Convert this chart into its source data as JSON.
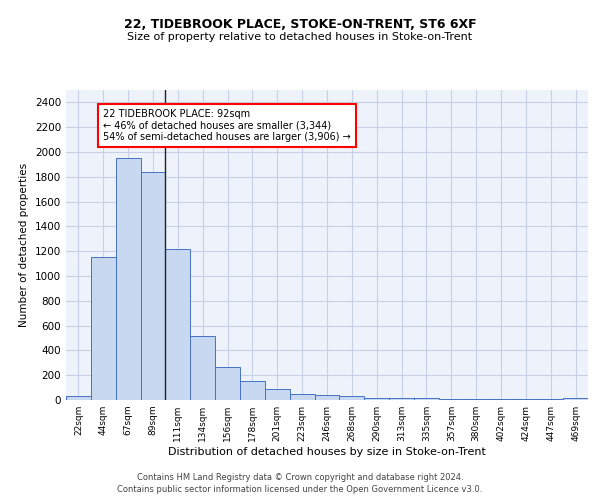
{
  "title1": "22, TIDEBROOK PLACE, STOKE-ON-TRENT, ST6 6XF",
  "title2": "Size of property relative to detached houses in Stoke-on-Trent",
  "xlabel": "Distribution of detached houses by size in Stoke-on-Trent",
  "ylabel": "Number of detached properties",
  "categories": [
    "22sqm",
    "44sqm",
    "67sqm",
    "89sqm",
    "111sqm",
    "134sqm",
    "156sqm",
    "178sqm",
    "201sqm",
    "223sqm",
    "246sqm",
    "268sqm",
    "290sqm",
    "313sqm",
    "335sqm",
    "357sqm",
    "380sqm",
    "402sqm",
    "424sqm",
    "447sqm",
    "469sqm"
  ],
  "values": [
    30,
    1150,
    1950,
    1840,
    1220,
    515,
    265,
    155,
    85,
    45,
    40,
    30,
    20,
    15,
    15,
    10,
    5,
    5,
    5,
    5,
    20
  ],
  "bar_color": "#c8d8f0",
  "bar_edge_color": "#4472c4",
  "annotation_text": "22 TIDEBROOK PLACE: 92sqm\n← 46% of detached houses are smaller (3,344)\n54% of semi-detached houses are larger (3,906) →",
  "annotation_box_color": "white",
  "annotation_box_edge_color": "red",
  "vline_color": "#222222",
  "grid_color": "#c8d0e8",
  "background_color": "#eef2fa",
  "footer1": "Contains HM Land Registry data © Crown copyright and database right 2024.",
  "footer2": "Contains public sector information licensed under the Open Government Licence v3.0.",
  "ylim": [
    0,
    2500
  ],
  "yticks": [
    0,
    200,
    400,
    600,
    800,
    1000,
    1200,
    1400,
    1600,
    1800,
    2000,
    2200,
    2400
  ]
}
